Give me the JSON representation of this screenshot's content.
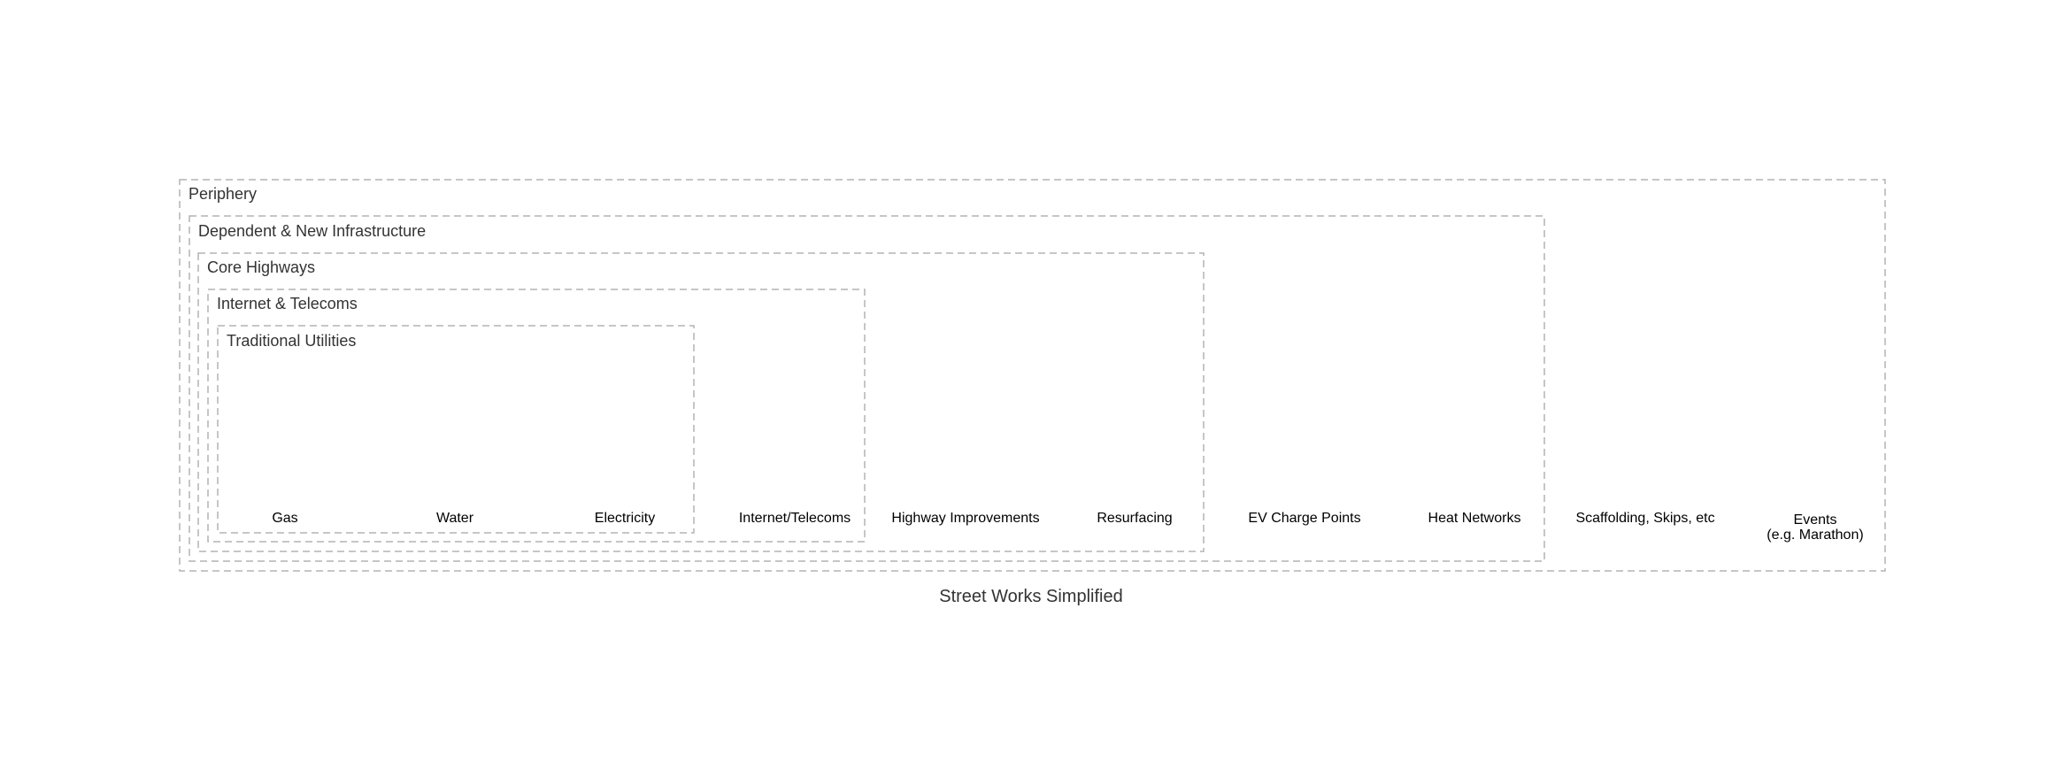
{
  "diagram": {
    "caption": "Street Works Simplified",
    "clusters": {
      "periphery": "Periphery",
      "dependent": "Dependent & New Infrastructure",
      "core": "Core Highways",
      "internet": "Internet & Telecoms",
      "traditional": "Traditional Utilities"
    },
    "nodes": {
      "gas": "Gas",
      "water": "Water",
      "electricity": "Electricity",
      "internet_telecoms": "Internet/Telecoms",
      "highway_improvements": "Highway Improvements",
      "resurfacing": "Resurfacing",
      "ev_charge_points": "EV Charge Points",
      "heat_networks": "Heat Networks",
      "scaffolding": "Scaffolding, Skips, etc",
      "events_line1": "Events",
      "events_line2": "(e.g. Marathon)"
    },
    "colors": {
      "border": "#b3b3b3",
      "cluster_text": "#333333",
      "node_text": "#000000",
      "background": "#ffffff"
    }
  }
}
